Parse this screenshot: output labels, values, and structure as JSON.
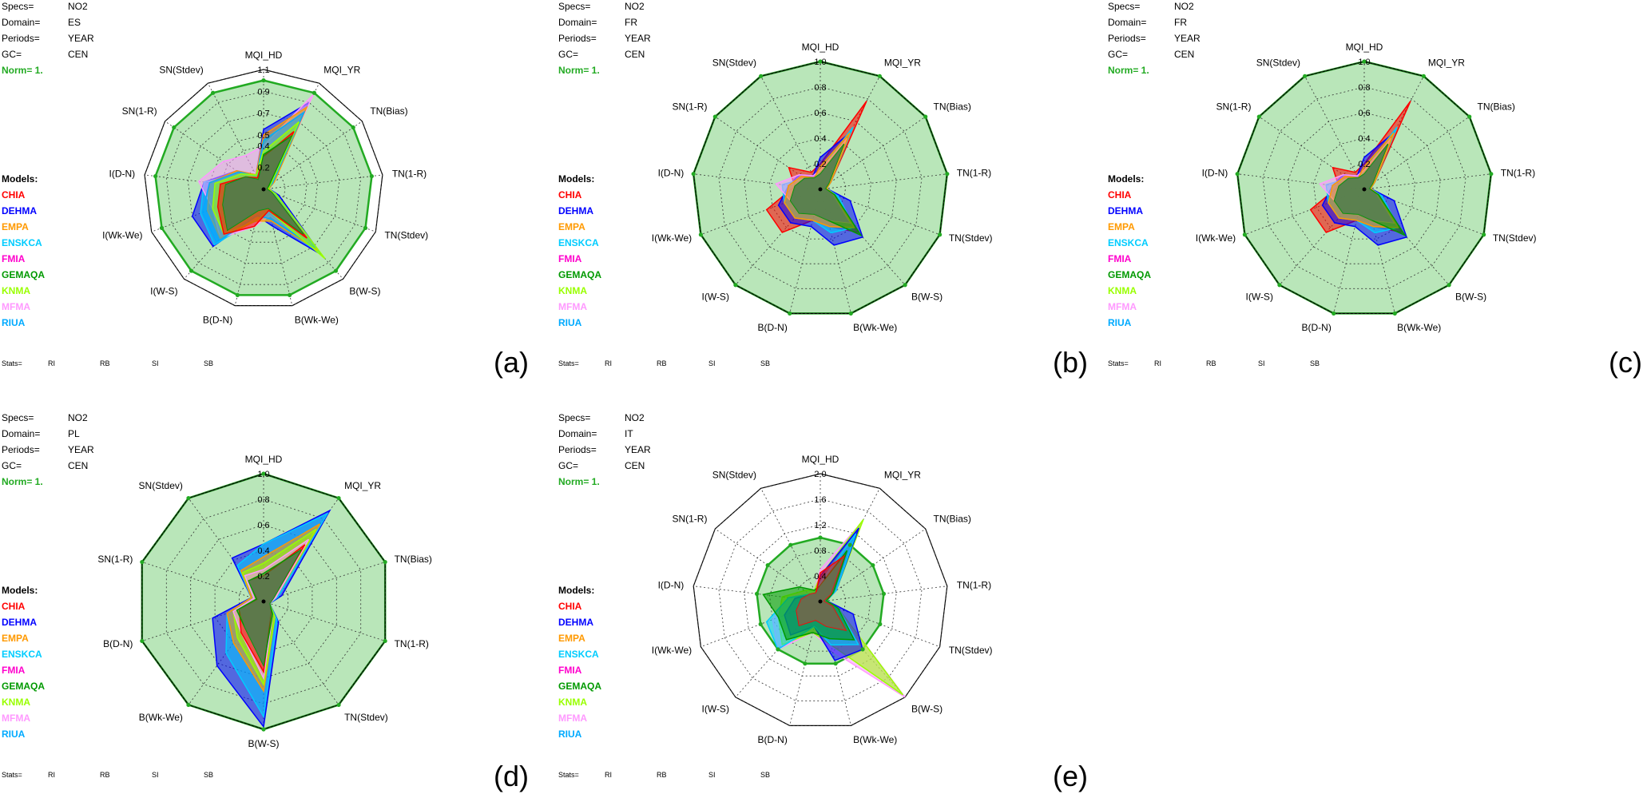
{
  "meta_labels": [
    "Specs=",
    "Domain=",
    "Periods=",
    "GC="
  ],
  "models_label": "Models:",
  "stats_label": "Stats=",
  "stats_items": [
    "RI",
    "RB",
    "SI",
    "SB"
  ],
  "models": [
    {
      "name": "CHIA",
      "color": "#ff0000"
    },
    {
      "name": "DEHMA",
      "color": "#0000ff"
    },
    {
      "name": "EMPA",
      "color": "#ff9900"
    },
    {
      "name": "ENSKCA",
      "color": "#00ccff"
    },
    {
      "name": "FMIA",
      "color": "#ff00cc"
    },
    {
      "name": "GEMAQA",
      "color": "#009900"
    },
    {
      "name": "KNMA",
      "color": "#99ff00"
    },
    {
      "name": "MFMA",
      "color": "#ff99ff"
    },
    {
      "name": "RIUA",
      "color": "#00aaff"
    }
  ],
  "colors": {
    "norm_fill": "#b9e6b9",
    "norm_line": "#22aa22",
    "norm_label": "#22aa22",
    "overlay": "#5a7a5a"
  },
  "chart_data": [
    {
      "panel_label": "(a)",
      "type": "radar",
      "specs": "NO2",
      "domain": "ES",
      "periods": "YEAR",
      "gc": "CEN",
      "norm": "Norm= 1.",
      "axes": [
        "MQI_HD",
        "MQI_YR",
        "TN(Bias)",
        "TN(1-R)",
        "TN(Stdev)",
        "B(W-S)",
        "B(Wk-We)",
        "B(D-N)",
        "I(W-S)",
        "I(Wk-We)",
        "I(D-N)",
        "SN(1-R)",
        "SN(Stdev)"
      ],
      "rmax": 1.1,
      "tick_labels": [
        "0.2",
        "0.4",
        "0.5",
        "0.7",
        "0.9",
        "1.1"
      ],
      "tick_values": [
        0.2,
        0.4,
        0.5,
        0.7,
        0.9,
        1.1
      ],
      "norm_value": 1.0,
      "series": [
        {
          "name": "DEHMA",
          "values": [
            0.55,
            0.9,
            0.1,
            0.05,
            0.15,
            0.8,
            0.35,
            0.25,
            0.7,
            0.7,
            0.55,
            0.3,
            0.15
          ]
        },
        {
          "name": "ENSKCA",
          "values": [
            0.45,
            0.85,
            0.1,
            0.05,
            0.12,
            0.78,
            0.3,
            0.28,
            0.68,
            0.62,
            0.55,
            0.25,
            0.12
          ]
        },
        {
          "name": "MFMA",
          "values": [
            0.4,
            0.98,
            0.1,
            0.05,
            0.1,
            0.7,
            0.25,
            0.35,
            0.6,
            0.5,
            0.6,
            0.45,
            0.35
          ]
        },
        {
          "name": "EMPA",
          "values": [
            0.5,
            0.85,
            0.12,
            0.05,
            0.1,
            0.75,
            0.3,
            0.3,
            0.6,
            0.55,
            0.5,
            0.3,
            0.15
          ]
        },
        {
          "name": "RIUA",
          "values": [
            0.45,
            0.8,
            0.1,
            0.04,
            0.1,
            0.72,
            0.28,
            0.25,
            0.65,
            0.6,
            0.5,
            0.28,
            0.14
          ]
        },
        {
          "name": "KNMA",
          "values": [
            0.35,
            0.7,
            0.08,
            0.04,
            0.12,
            0.85,
            0.2,
            0.3,
            0.55,
            0.5,
            0.45,
            0.25,
            0.15
          ]
        },
        {
          "name": "CHIA",
          "values": [
            0.3,
            0.6,
            0.05,
            0.03,
            0.08,
            0.6,
            0.2,
            0.35,
            0.55,
            0.45,
            0.4,
            0.2,
            0.12
          ]
        },
        {
          "name": "GEMAQA",
          "values": [
            0.32,
            0.55,
            0.06,
            0.03,
            0.08,
            0.55,
            0.18,
            0.2,
            0.5,
            0.4,
            0.35,
            0.2,
            0.1
          ]
        }
      ]
    },
    {
      "panel_label": "(b)",
      "type": "radar",
      "specs": "NO2",
      "domain": "FR",
      "periods": "YEAR",
      "gc": "CEN",
      "norm": "Norm= 1.",
      "axes": [
        "MQI_HD",
        "MQI_YR",
        "TN(Bias)",
        "TN(1-R)",
        "TN(Stdev)",
        "B(W-S)",
        "B(Wk-We)",
        "B(D-N)",
        "I(W-S)",
        "I(Wk-We)",
        "I(D-N)",
        "SN(1-R)",
        "SN(Stdev)"
      ],
      "rmax": 1.0,
      "tick_labels": [
        "0.2",
        "0.4",
        "0.6",
        "0.8",
        "1.0"
      ],
      "tick_values": [
        0.2,
        0.4,
        0.6,
        0.8,
        1.0
      ],
      "norm_value": 1.0,
      "series": [
        {
          "name": "CHIA",
          "values": [
            0.2,
            0.78,
            0.1,
            0.05,
            0.1,
            0.45,
            0.3,
            0.25,
            0.45,
            0.45,
            0.2,
            0.3,
            0.15
          ]
        },
        {
          "name": "DEHMA",
          "values": [
            0.25,
            0.5,
            0.1,
            0.05,
            0.25,
            0.5,
            0.45,
            0.3,
            0.35,
            0.35,
            0.25,
            0.2,
            0.12
          ]
        },
        {
          "name": "ENSKCA",
          "values": [
            0.15,
            0.55,
            0.1,
            0.05,
            0.15,
            0.4,
            0.35,
            0.25,
            0.3,
            0.3,
            0.3,
            0.15,
            0.1
          ]
        },
        {
          "name": "MFMA",
          "values": [
            0.15,
            0.45,
            0.08,
            0.05,
            0.1,
            0.35,
            0.25,
            0.2,
            0.25,
            0.25,
            0.35,
            0.2,
            0.12
          ]
        },
        {
          "name": "EMPA",
          "values": [
            0.18,
            0.5,
            0.1,
            0.05,
            0.12,
            0.4,
            0.3,
            0.25,
            0.3,
            0.3,
            0.25,
            0.18,
            0.1
          ]
        },
        {
          "name": "GEMAQA",
          "values": [
            0.12,
            0.4,
            0.08,
            0.04,
            0.12,
            0.48,
            0.25,
            0.2,
            0.25,
            0.25,
            0.2,
            0.15,
            0.1
          ]
        }
      ]
    },
    {
      "panel_label": "(c)",
      "type": "radar",
      "specs": "NO2",
      "domain": "FR",
      "periods": "YEAR",
      "gc": "CEN",
      "norm": "Norm= 1.",
      "axes": [
        "MQI_HD",
        "MQI_YR",
        "TN(Bias)",
        "TN(1-R)",
        "TN(Stdev)",
        "B(W-S)",
        "B(Wk-We)",
        "B(D-N)",
        "I(W-S)",
        "I(Wk-We)",
        "I(D-N)",
        "SN(1-R)",
        "SN(Stdev)"
      ],
      "rmax": 1.0,
      "tick_labels": [
        "0.2",
        "0.4",
        "0.6",
        "0.8",
        "1.0"
      ],
      "tick_values": [
        0.2,
        0.4,
        0.6,
        0.8,
        1.0
      ],
      "norm_value": 1.0,
      "series": [
        {
          "name": "CHIA",
          "values": [
            0.2,
            0.78,
            0.1,
            0.05,
            0.1,
            0.45,
            0.3,
            0.25,
            0.45,
            0.45,
            0.2,
            0.3,
            0.15
          ]
        },
        {
          "name": "DEHMA",
          "values": [
            0.25,
            0.5,
            0.1,
            0.05,
            0.25,
            0.5,
            0.45,
            0.3,
            0.35,
            0.35,
            0.25,
            0.2,
            0.12
          ]
        },
        {
          "name": "ENSKCA",
          "values": [
            0.15,
            0.55,
            0.1,
            0.05,
            0.15,
            0.4,
            0.35,
            0.25,
            0.3,
            0.3,
            0.3,
            0.15,
            0.1
          ]
        },
        {
          "name": "MFMA",
          "values": [
            0.15,
            0.45,
            0.08,
            0.05,
            0.1,
            0.35,
            0.25,
            0.2,
            0.25,
            0.25,
            0.35,
            0.2,
            0.12
          ]
        },
        {
          "name": "EMPA",
          "values": [
            0.18,
            0.5,
            0.1,
            0.05,
            0.12,
            0.4,
            0.3,
            0.25,
            0.3,
            0.3,
            0.25,
            0.18,
            0.1
          ]
        },
        {
          "name": "GEMAQA",
          "values": [
            0.12,
            0.4,
            0.08,
            0.04,
            0.12,
            0.48,
            0.25,
            0.2,
            0.25,
            0.25,
            0.2,
            0.15,
            0.1
          ]
        }
      ]
    },
    {
      "panel_label": "(d)",
      "type": "radar",
      "specs": "NO2",
      "domain": "PL",
      "periods": "YEAR",
      "gc": "CEN",
      "norm": "Norm= 1.",
      "axes": [
        "MQI_HD",
        "MQI_YR",
        "TN(Bias)",
        "TN(1-R)",
        "TN(Stdev)",
        "B(W-S)",
        "B(Wk-We)",
        "B(D-N)",
        "SN(1-R)",
        "SN(Stdev)"
      ],
      "rmax": 1.0,
      "tick_labels": [
        "0.2",
        "0.4",
        "0.6",
        "0.8",
        "1.0"
      ],
      "tick_values": [
        0.2,
        0.4,
        0.6,
        0.8,
        1.0
      ],
      "norm_value": 1.0,
      "series": [
        {
          "name": "DEHMA",
          "values": [
            0.45,
            0.88,
            0.15,
            0.05,
            0.2,
            0.98,
            0.62,
            0.42,
            0.1,
            0.42
          ]
        },
        {
          "name": "ENSKCA",
          "values": [
            0.45,
            0.85,
            0.12,
            0.05,
            0.18,
            0.9,
            0.5,
            0.3,
            0.1,
            0.35
          ]
        },
        {
          "name": "EMPA",
          "values": [
            0.35,
            0.75,
            0.1,
            0.05,
            0.15,
            0.7,
            0.4,
            0.3,
            0.1,
            0.3
          ]
        },
        {
          "name": "KNMA",
          "values": [
            0.3,
            0.7,
            0.1,
            0.05,
            0.15,
            0.65,
            0.35,
            0.25,
            0.08,
            0.28
          ]
        },
        {
          "name": "MFMA",
          "values": [
            0.25,
            0.6,
            0.1,
            0.05,
            0.12,
            0.6,
            0.3,
            0.25,
            0.08,
            0.25
          ]
        },
        {
          "name": "CHIA",
          "values": [
            0.2,
            0.55,
            0.08,
            0.05,
            0.1,
            0.55,
            0.3,
            0.2,
            0.05,
            0.2
          ]
        },
        {
          "name": "GEMAQA",
          "values": [
            0.22,
            0.5,
            0.08,
            0.05,
            0.12,
            0.5,
            0.25,
            0.22,
            0.06,
            0.2
          ]
        }
      ]
    },
    {
      "panel_label": "(e)",
      "type": "radar",
      "specs": "NO2",
      "domain": "IT",
      "periods": "YEAR",
      "gc": "CEN",
      "norm": "Norm= 1.",
      "axes": [
        "MQI_HD",
        "MQI_YR",
        "TN(Bias)",
        "TN(1-R)",
        "TN(Stdev)",
        "B(W-S)",
        "B(Wk-We)",
        "B(D-N)",
        "I(W-S)",
        "I(Wk-We)",
        "I(D-N)",
        "SN(1-R)",
        "SN(Stdev)"
      ],
      "rmax": 2.0,
      "tick_labels": [
        "0.4",
        "0.8",
        "1.2",
        "1.6",
        "2.0"
      ],
      "tick_values": [
        0.4,
        0.8,
        1.2,
        1.6,
        2.0
      ],
      "norm_value": 1.0,
      "series": [
        {
          "name": "MFMA",
          "values": [
            0.5,
            1.4,
            0.3,
            0.1,
            0.3,
            2.0,
            0.8,
            0.5,
            1.0,
            0.8,
            0.5,
            0.3,
            0.2
          ]
        },
        {
          "name": "KNMA",
          "values": [
            0.4,
            1.45,
            0.3,
            0.1,
            0.3,
            1.95,
            0.7,
            0.5,
            0.9,
            0.7,
            0.6,
            0.3,
            0.2
          ]
        },
        {
          "name": "DEHMA",
          "values": [
            0.4,
            1.3,
            0.3,
            0.1,
            0.55,
            1.0,
            0.95,
            0.4,
            0.7,
            0.6,
            0.4,
            0.2,
            0.15
          ]
        },
        {
          "name": "ENSKCA",
          "values": [
            0.3,
            1.2,
            0.3,
            0.1,
            0.3,
            0.9,
            0.7,
            0.4,
            1.0,
            0.9,
            0.5,
            0.2,
            0.15
          ]
        },
        {
          "name": "GEMAQA",
          "values": [
            0.25,
            0.9,
            0.25,
            0.1,
            0.3,
            0.8,
            0.6,
            0.5,
            0.8,
            0.7,
            0.9,
            0.4,
            0.2
          ]
        },
        {
          "name": "CHIA",
          "values": [
            0.45,
            0.8,
            0.2,
            0.05,
            0.2,
            0.6,
            0.4,
            0.3,
            0.5,
            0.4,
            0.3,
            0.2,
            0.15
          ]
        }
      ]
    }
  ]
}
